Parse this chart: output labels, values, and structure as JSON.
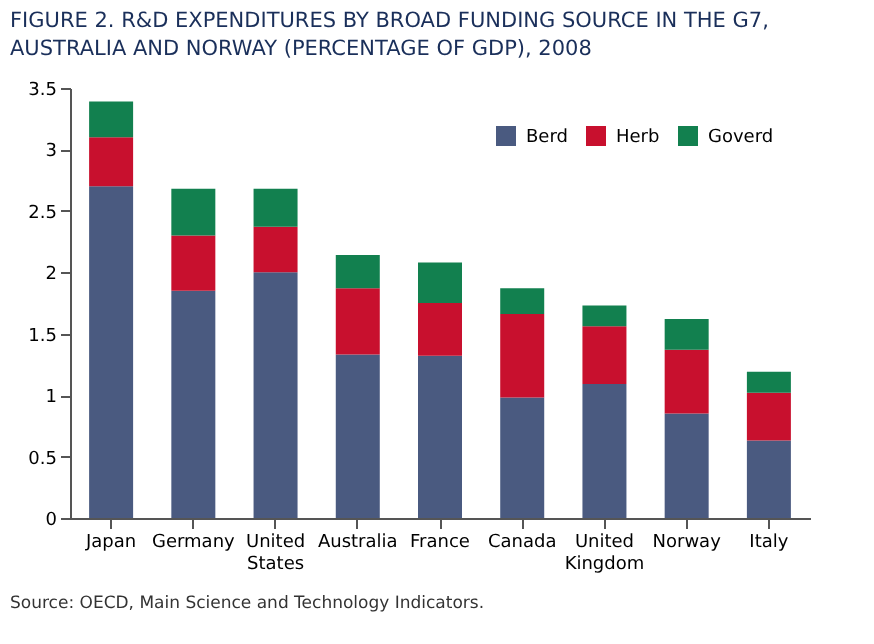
{
  "chart_data": {
    "type": "bar",
    "stacked": true,
    "title": "FIGURE 2. R&D EXPENDITURES BY BROAD FUNDING SOURCE IN THE G7, AUSTRALIA AND NORWAY (PERCENTAGE OF GDP), 2008",
    "categories": [
      "Japan",
      "Germany",
      "United States",
      "Australia",
      "France",
      "Canada",
      "United Kingdom",
      "Norway",
      "Italy"
    ],
    "series": [
      {
        "name": "Berd",
        "color": "#4a5a80",
        "values": [
          2.7,
          1.85,
          2.0,
          1.33,
          1.32,
          0.98,
          1.09,
          0.85,
          0.63
        ]
      },
      {
        "name": "Herb",
        "color": "#c8102e",
        "values": [
          0.4,
          0.45,
          0.37,
          0.54,
          0.43,
          0.68,
          0.47,
          0.52,
          0.39
        ]
      },
      {
        "name": "Goverd",
        "color": "#12804f",
        "values": [
          0.29,
          0.38,
          0.31,
          0.27,
          0.33,
          0.21,
          0.17,
          0.25,
          0.17
        ]
      }
    ],
    "ylim": [
      0,
      3.5
    ],
    "yticks": [
      0,
      0.5,
      1,
      1.5,
      2,
      2.5,
      3,
      3.5
    ],
    "grid": false,
    "legend": "top right",
    "annotations": [
      "Source: OECD, Main Science and Technology Indicators."
    ]
  }
}
